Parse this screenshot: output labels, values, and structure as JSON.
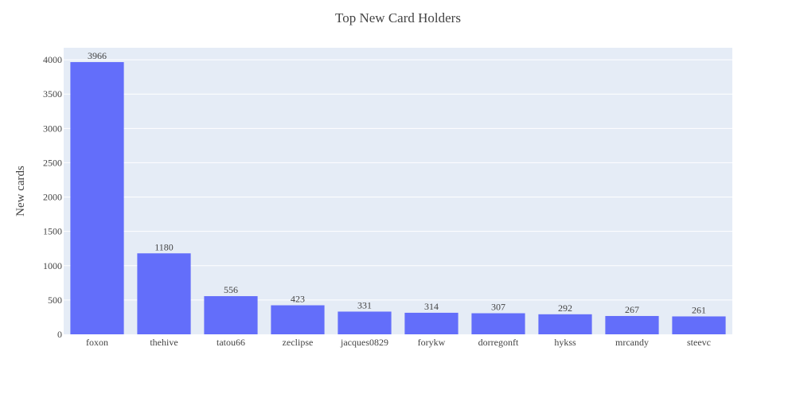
{
  "chart_data": {
    "type": "bar",
    "title": "Top New Card Holders",
    "xlabel": "",
    "ylabel": "New cards",
    "categories": [
      "foxon",
      "thehive",
      "tatou66",
      "zeclipse",
      "jacques0829",
      "forykw",
      "dorregonft",
      "hykss",
      "mrcandy",
      "steevc"
    ],
    "values": [
      3966,
      1180,
      556,
      423,
      331,
      314,
      307,
      292,
      267,
      261
    ],
    "ylim": [
      0,
      4175
    ],
    "yticks": [
      0,
      500,
      1000,
      1500,
      2000,
      2500,
      3000,
      3500,
      4000
    ],
    "grid": true,
    "legend": "none",
    "colors": {
      "bar": "#636efa",
      "plot_bg": "#e5ecf6",
      "grid": "#ffffff",
      "text": "#444444"
    }
  }
}
